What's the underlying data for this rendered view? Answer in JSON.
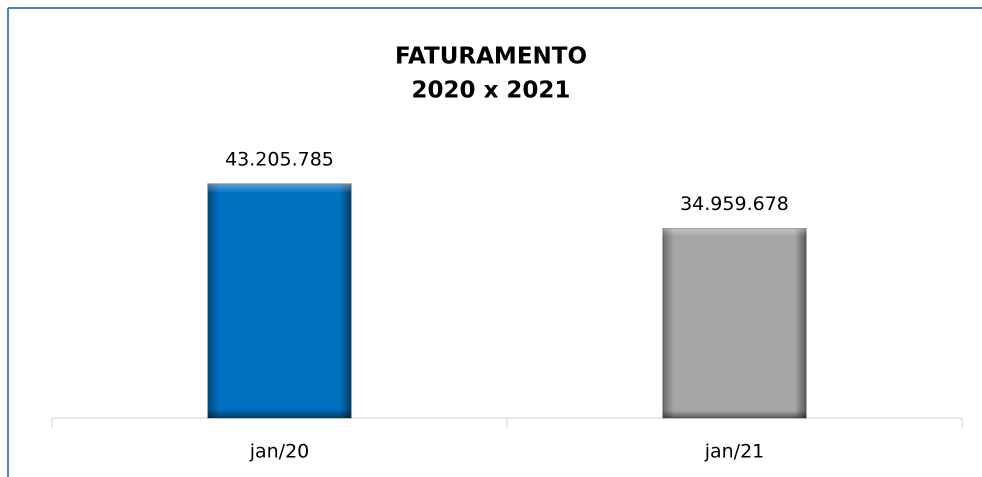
{
  "chart_data": {
    "type": "bar",
    "title": [
      "FATURAMENTO",
      "2020 x 2021"
    ],
    "categories": [
      "jan/20",
      "jan/21"
    ],
    "values": [
      43205785,
      34959678
    ],
    "value_labels": [
      "43.205.785",
      "34.959.678"
    ],
    "colors": [
      "#0070c0",
      "#a6a6a6"
    ],
    "ylim": [
      0,
      50000000
    ]
  }
}
